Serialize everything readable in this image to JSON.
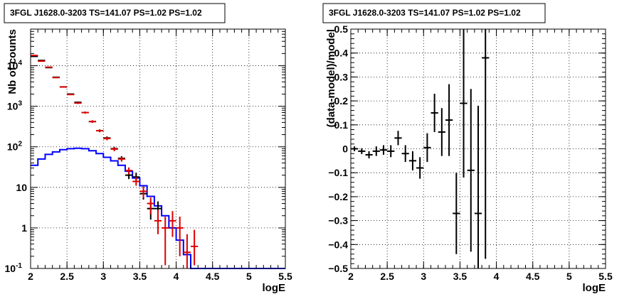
{
  "chart_data": [
    {
      "type": "line",
      "title": "3FGL J1628.0-3203 TS=141.07 PS=1.02 PS=1.02",
      "xlabel": "logE",
      "ylabel": "Nb of counts",
      "xlim": [
        2,
        5.5
      ],
      "ylim": [
        0.1,
        80000
      ],
      "yscale": "log",
      "grid": true,
      "x_ticks": [
        "2",
        "2.5",
        "3",
        "3.5",
        "4",
        "4.5",
        "5",
        "5.5"
      ],
      "y_ticks": [
        {
          "value": 0.1,
          "label": "10",
          "sup": "-1"
        },
        {
          "value": 1,
          "label": "1",
          "sup": ""
        },
        {
          "value": 10,
          "label": "10",
          "sup": ""
        },
        {
          "value": 100,
          "label": "10",
          "sup": "2"
        },
        {
          "value": 1000,
          "label": "10",
          "sup": "3"
        },
        {
          "value": 10000,
          "label": "10",
          "sup": "4"
        }
      ],
      "bin_edges": [
        2,
        2.1,
        2.2,
        2.3,
        2.4,
        2.5,
        2.6,
        2.7,
        2.8,
        2.9,
        3.0,
        3.1,
        3.2,
        3.3,
        3.4,
        3.5,
        3.6,
        3.7,
        3.8,
        3.9,
        4.0,
        4.1,
        4.2,
        4.3,
        4.4,
        4.5,
        4.6,
        4.7,
        4.8,
        4.9,
        5.0,
        5.1,
        5.2,
        5.3,
        5.4,
        5.5
      ],
      "series": [
        {
          "type": "step",
          "color": "#0000ff",
          "values": [
            35,
            50,
            65,
            75,
            85,
            90,
            92,
            90,
            80,
            68,
            55,
            45,
            35,
            25,
            17,
            11,
            6,
            3.5,
            2,
            1,
            0.5,
            0.22,
            0.1,
            0.1,
            0.1,
            0.1,
            0.1,
            0.1,
            0.1,
            0.1,
            0.1,
            0.1,
            0.1,
            0.1,
            0.1
          ]
        },
        {
          "type": "errorbar",
          "color": "#000000",
          "points": [
            {
              "x": 2.05,
              "y": 17000,
              "lo": 16700,
              "hi": 17300
            },
            {
              "x": 2.15,
              "y": 13500,
              "lo": 13200,
              "hi": 13800
            },
            {
              "x": 2.25,
              "y": 9000,
              "lo": 8800,
              "hi": 9200
            },
            {
              "x": 2.35,
              "y": 5200,
              "lo": 5050,
              "hi": 5350
            },
            {
              "x": 2.45,
              "y": 3000,
              "lo": 2900,
              "hi": 3100
            },
            {
              "x": 2.55,
              "y": 2000,
              "lo": 1920,
              "hi": 2080
            },
            {
              "x": 2.65,
              "y": 1250,
              "lo": 1190,
              "hi": 1310
            },
            {
              "x": 2.75,
              "y": 700,
              "lo": 660,
              "hi": 740
            },
            {
              "x": 2.85,
              "y": 420,
              "lo": 390,
              "hi": 450
            },
            {
              "x": 2.95,
              "y": 250,
              "lo": 230,
              "hi": 270
            },
            {
              "x": 3.05,
              "y": 165,
              "lo": 150,
              "hi": 180
            },
            {
              "x": 3.15,
              "y": 90,
              "lo": 80,
              "hi": 100
            },
            {
              "x": 3.25,
              "y": 52,
              "lo": 45,
              "hi": 59
            },
            {
              "x": 3.35,
              "y": 20,
              "lo": 16,
              "hi": 25
            },
            {
              "x": 3.45,
              "y": 18,
              "lo": 14,
              "hi": 23
            },
            {
              "x": 3.55,
              "y": 7,
              "lo": 5,
              "hi": 9.5
            },
            {
              "x": 3.65,
              "y": 3,
              "lo": 1.6,
              "hi": 4.5
            },
            {
              "x": 3.75,
              "y": 3,
              "lo": 1.6,
              "hi": 4.5
            }
          ]
        },
        {
          "type": "errorbar",
          "color": "#dd0000",
          "points": [
            {
              "x": 2.05,
              "y": 18000,
              "lo": 17700,
              "hi": 18300
            },
            {
              "x": 2.15,
              "y": 13000,
              "lo": 12700,
              "hi": 13300
            },
            {
              "x": 2.25,
              "y": 9200,
              "lo": 9000,
              "hi": 9400
            },
            {
              "x": 2.35,
              "y": 5100,
              "lo": 4950,
              "hi": 5250
            },
            {
              "x": 2.45,
              "y": 3000,
              "lo": 2900,
              "hi": 3100
            },
            {
              "x": 2.55,
              "y": 1950,
              "lo": 1880,
              "hi": 2020
            },
            {
              "x": 2.65,
              "y": 1200,
              "lo": 1140,
              "hi": 1260
            },
            {
              "x": 2.75,
              "y": 700,
              "lo": 660,
              "hi": 740
            },
            {
              "x": 2.85,
              "y": 420,
              "lo": 390,
              "hi": 450
            },
            {
              "x": 2.95,
              "y": 250,
              "lo": 230,
              "hi": 270
            },
            {
              "x": 3.05,
              "y": 160,
              "lo": 145,
              "hi": 175
            },
            {
              "x": 3.15,
              "y": 88,
              "lo": 78,
              "hi": 98
            },
            {
              "x": 3.25,
              "y": 50,
              "lo": 43,
              "hi": 57
            },
            {
              "x": 3.35,
              "y": 26,
              "lo": 21,
              "hi": 31
            },
            {
              "x": 3.45,
              "y": 14,
              "lo": 11,
              "hi": 18
            },
            {
              "x": 3.55,
              "y": 8,
              "lo": 5.5,
              "hi": 10.5
            },
            {
              "x": 3.65,
              "y": 4,
              "lo": 2.2,
              "hi": 5.6
            },
            {
              "x": 3.75,
              "y": 1.5,
              "lo": 0.7,
              "hi": 2.8
            },
            {
              "x": 3.85,
              "y": 1.0,
              "lo": 0.12,
              "hi": 1.9
            },
            {
              "x": 3.95,
              "y": 1.5,
              "lo": 0.6,
              "hi": 2.6
            },
            {
              "x": 4.05,
              "y": 1.0,
              "lo": 0.2,
              "hi": 1.9
            },
            {
              "x": 4.15,
              "y": 0.25,
              "lo": 0.1,
              "hi": 0.7
            },
            {
              "x": 4.25,
              "y": 0.35,
              "lo": 0.12,
              "hi": 0.9
            }
          ]
        }
      ]
    },
    {
      "type": "scatter",
      "title": "3FGL J1628.0-3203 TS=141.07 PS=1.02 PS=1.02",
      "xlabel": "logE",
      "ylabel": "(data-model)/model",
      "xlim": [
        2,
        5.5
      ],
      "ylim": [
        -0.5,
        0.5
      ],
      "grid": true,
      "x_ticks": [
        "2",
        "2.5",
        "3",
        "3.5",
        "4",
        "4.5",
        "5",
        "5.5"
      ],
      "y_ticks": [
        "-0.5",
        "-0.4",
        "-0.3",
        "-0.2",
        "-0.1",
        "0",
        "0.1",
        "0.2",
        "0.3",
        "0.4",
        "0.5"
      ],
      "series": [
        {
          "type": "errorbar",
          "color": "#000000",
          "points": [
            {
              "x": 2.05,
              "y": 0.0,
              "err": 0.01
            },
            {
              "x": 2.15,
              "y": -0.01,
              "err": 0.012
            },
            {
              "x": 2.25,
              "y": -0.025,
              "err": 0.015
            },
            {
              "x": 2.35,
              "y": -0.01,
              "err": 0.02
            },
            {
              "x": 2.45,
              "y": -0.005,
              "err": 0.02
            },
            {
              "x": 2.55,
              "y": -0.01,
              "err": 0.025
            },
            {
              "x": 2.65,
              "y": 0.045,
              "err": 0.03
            },
            {
              "x": 2.75,
              "y": -0.02,
              "err": 0.035
            },
            {
              "x": 2.85,
              "y": -0.05,
              "err": 0.04
            },
            {
              "x": 2.95,
              "y": -0.08,
              "err": 0.045
            },
            {
              "x": 3.05,
              "y": 0.005,
              "err": 0.06
            },
            {
              "x": 3.15,
              "y": 0.15,
              "err": 0.08
            },
            {
              "x": 3.25,
              "y": 0.07,
              "err": 0.1
            },
            {
              "x": 3.35,
              "y": 0.12,
              "err": 0.15
            },
            {
              "x": 3.45,
              "y": -0.27,
              "err": 0.17
            },
            {
              "x": 3.55,
              "y": 0.19,
              "err": 0.31
            },
            {
              "x": 3.65,
              "y": -0.09,
              "err": 0.34
            },
            {
              "x": 3.75,
              "y": -0.27,
              "err": 0.45
            },
            {
              "x": 3.85,
              "y": 0.38,
              "err": 0.84
            }
          ]
        }
      ]
    }
  ]
}
